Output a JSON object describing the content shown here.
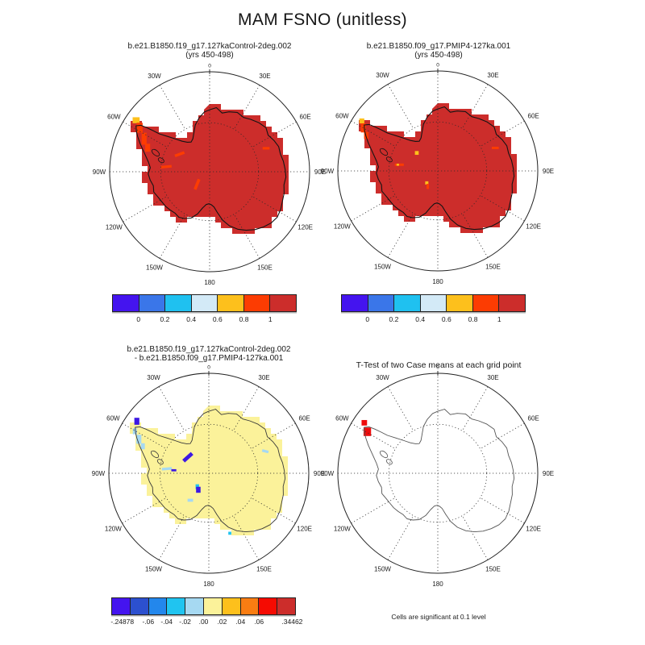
{
  "title": "MAM FSNO (unitless)",
  "panels": [
    {
      "title_line1": "b.e21.B1850.f19_g17.127kaControl-2deg.002",
      "title_line2": "(yrs 450-498)"
    },
    {
      "title_line1": "b.e21.B1850.f09_g17.PMIP4-127ka.001",
      "title_line2": "(yrs 450-498)"
    },
    {
      "title_line1": "b.e21.B1850.f19_g17.127kaControl-2deg.002",
      "title_line2": "- b.e21.B1850.f09_g17.PMIP4-127ka.001"
    },
    {
      "title": "T-Test of two Case means at each grid point",
      "caption": "Cells are significant at 0.1 level"
    }
  ],
  "colorbars": {
    "top": {
      "labels": [
        "0",
        "0.2",
        "0.4",
        "0.6",
        "0.8",
        "1"
      ],
      "colors": [
        "#4414ef",
        "#3a76e9",
        "#1fc1f0",
        "#d3eaf7",
        "#fdc01c",
        "#fc3c02",
        "#cc2d2b"
      ]
    },
    "diff": {
      "labels": [
        "-.24878",
        "-.06",
        "-.04",
        "-.02",
        ".00",
        ".02",
        ".04",
        ".06",
        ".34462"
      ],
      "colors": [
        "#4414ef",
        "#2c50cf",
        "#2387ec",
        "#20c4f0",
        "#a6d9f2",
        "#fbf29a",
        "#fdc01c",
        "#f97d12",
        "#f50b02",
        "#cc2d2b"
      ]
    }
  },
  "compass": {
    "pole_meridian_label": "0",
    "labels": [
      {
        "angle": 30,
        "text": "30E"
      },
      {
        "angle": 60,
        "text": "60E"
      },
      {
        "angle": 90,
        "text": "90E"
      },
      {
        "angle": 120,
        "text": "120E"
      },
      {
        "angle": 150,
        "text": "150E"
      },
      {
        "angle": 180,
        "text": "180"
      },
      {
        "angle": 210,
        "text": "150W"
      },
      {
        "angle": 240,
        "text": "120W"
      },
      {
        "angle": 270,
        "text": "90W"
      },
      {
        "angle": 300,
        "text": "60W"
      },
      {
        "angle": 330,
        "text": "30W"
      }
    ]
  },
  "map_colors": {
    "continent_top": "#cc2d2b",
    "continent_diff": "#fbf29a",
    "coast_top": "#141414",
    "coast_diff": "#3a3a3a",
    "coast_ttest": "#555555",
    "grid": "#2a2a2a",
    "amber": "#fdc01c",
    "orangered": "#fc3c02",
    "deepblue": "#3d19e2",
    "lightblue": "#a6d9f2",
    "cyan": "#20c4f0",
    "sigred": "#ee0c0c"
  },
  "chart_data": [
    {
      "type": "heatmap",
      "panel": "top-left",
      "variable": "FSNO",
      "season": "MAM",
      "units": "unitless",
      "case": "b.e21.B1850.f19_g17.127kaControl-2deg.002",
      "years": "450-498",
      "projection": "south polar stereographic",
      "levels": [
        0,
        0.2,
        0.4,
        0.6,
        0.8,
        1
      ],
      "palette": [
        "#4414ef",
        "#3a76e9",
        "#1fc1f0",
        "#d3eaf7",
        "#fdc01c",
        "#fc3c02",
        "#cc2d2b"
      ],
      "field_summary": "Antarctica almost uniformly in the highest bin (>=1, dark red); 0.6-1 (amber/orange-red) cells along the Antarctic Peninsula tip and a few orange streaks inland near 90W and 60E"
    },
    {
      "type": "heatmap",
      "panel": "top-right",
      "variable": "FSNO",
      "season": "MAM",
      "units": "unitless",
      "case": "b.e21.B1850.f09_g17.PMIP4-127ka.001",
      "years": "450-498",
      "projection": "south polar stereographic",
      "levels": [
        0,
        0.2,
        0.4,
        0.6,
        0.8,
        1
      ],
      "palette": [
        "#4414ef",
        "#3a76e9",
        "#1fc1f0",
        "#d3eaf7",
        "#fdc01c",
        "#fc3c02",
        "#cc2d2b"
      ],
      "field_summary": "Antarctica almost uniformly >=1 (dark red); amber/orange cells at the Antarctic Peninsula tip and isolated amber dots and orange streaks in West Antarctica and near 60E"
    },
    {
      "type": "heatmap",
      "panel": "bottom-left",
      "variable": "FSNO difference",
      "case": "b.e21.B1850.f19_g17.127kaControl-2deg.002 minus b.e21.B1850.f09_g17.PMIP4-127ka.001",
      "projection": "south polar stereographic",
      "levels": [
        -0.24878,
        -0.06,
        -0.04,
        -0.02,
        0.0,
        0.02,
        0.04,
        0.06,
        0.34462
      ],
      "palette": [
        "#4414ef",
        "#2c50cf",
        "#2387ec",
        "#20c4f0",
        "#a6d9f2",
        "#fbf29a",
        "#fdc01c",
        "#f97d12",
        "#f50b02",
        "#cc2d2b"
      ],
      "field_summary": "Difference near zero (0 to +0.02, pale yellow) over nearly all of Antarctica; negative patches (deep blue to light blue, -0.25 to -0.02) on the Antarctic Peninsula and small streaks near 90W, 60E and south of the pole"
    },
    {
      "type": "heatmap",
      "panel": "bottom-right",
      "title": "T-Test of two Case means at each grid point",
      "caption": "Cells are significant at 0.1 level",
      "projection": "south polar stereographic",
      "field_summary": "Unfilled Antarctica outline; significant cells (solid red) only on the Antarctic Peninsula near 60W"
    }
  ]
}
